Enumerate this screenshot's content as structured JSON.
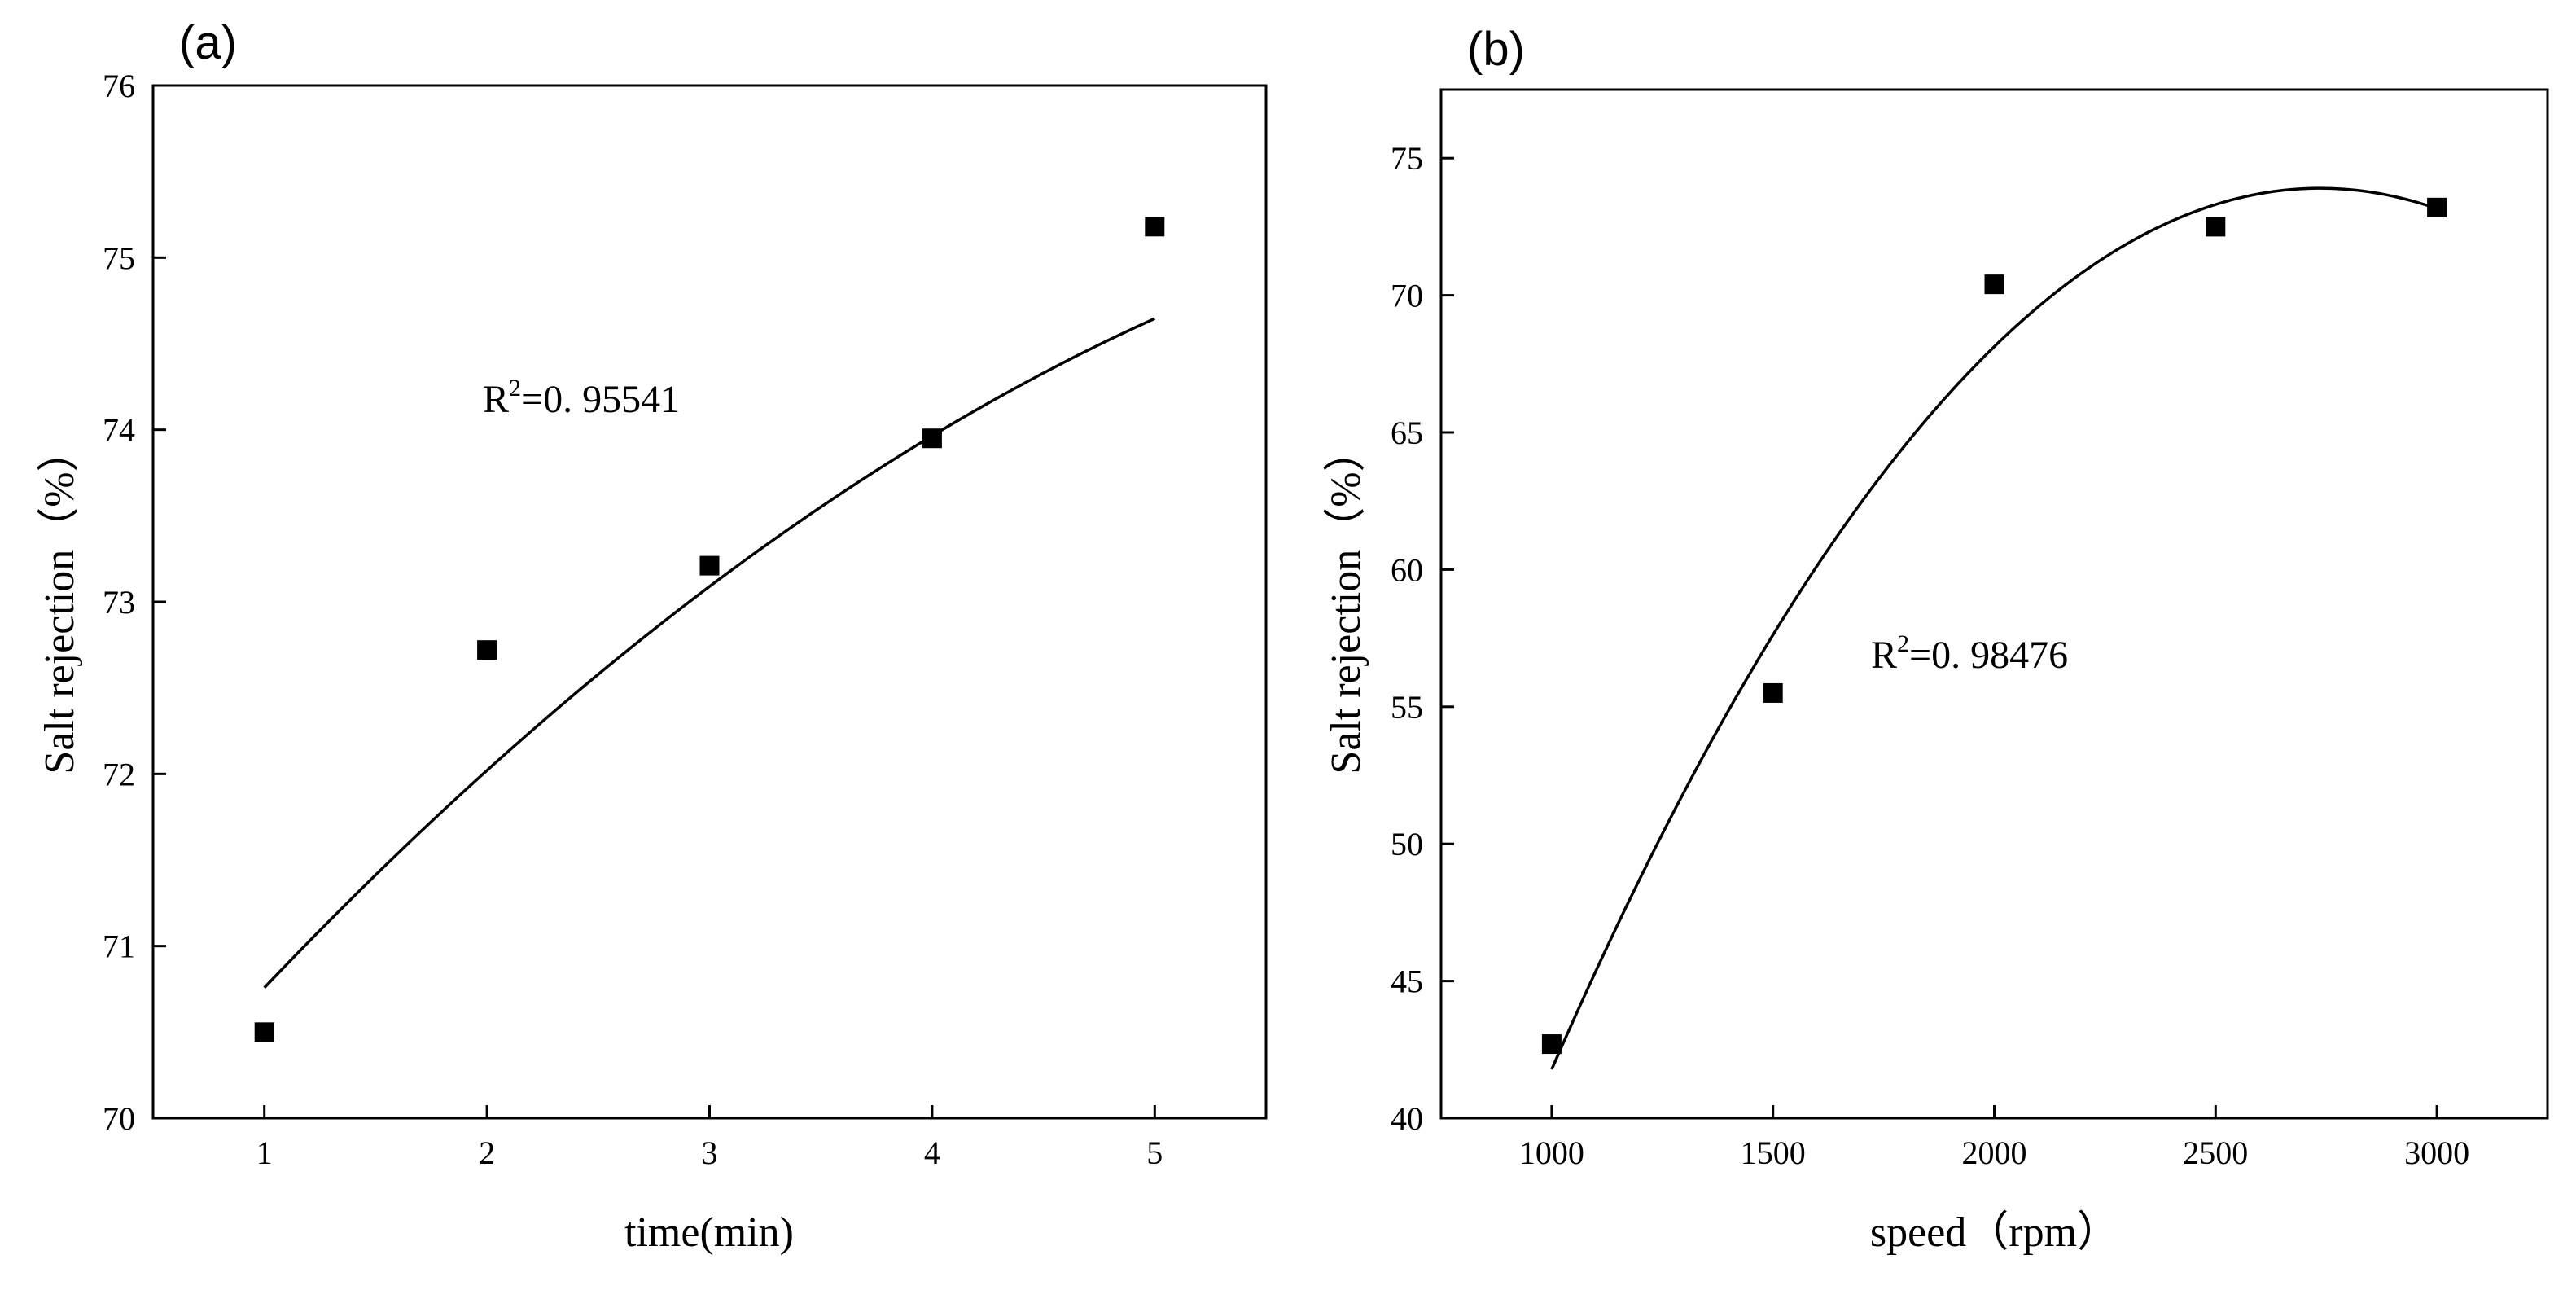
{
  "chart_data": [
    {
      "panel": "(a)",
      "type": "scatter",
      "xlabel": "time(min)",
      "ylabel": "Salt rejection（%）",
      "xlim": [
        0.5,
        5.5
      ],
      "ylim": [
        70,
        76
      ],
      "xticks": [
        1,
        2,
        3,
        4,
        5
      ],
      "yticks": [
        70,
        71,
        72,
        73,
        74,
        75,
        76
      ],
      "x": [
        1,
        2,
        3,
        4,
        5
      ],
      "y": [
        70.5,
        72.72,
        73.21,
        73.95,
        75.18
      ],
      "fit": {
        "type": "quadratic",
        "coeffs": [
          -0.0968,
          1.5528,
          69.302
        ],
        "x_range": [
          1,
          5
        ]
      },
      "annotation": {
        "base": "R",
        "sup": "2",
        "rest": "=0. 95541"
      }
    },
    {
      "panel": "(b)",
      "type": "scatter",
      "xlabel": "speed（rpm）",
      "ylabel": "Salt rejection（%）",
      "xlim": [
        750,
        3250
      ],
      "ylim": [
        40,
        77.5
      ],
      "xticks": [
        1000,
        1500,
        2000,
        2500,
        3000
      ],
      "yticks": [
        40,
        45,
        50,
        55,
        60,
        65,
        70,
        75
      ],
      "x": [
        1000,
        1500,
        2000,
        2500,
        3000
      ],
      "y": [
        42.7,
        55.5,
        70.4,
        72.5,
        73.2
      ],
      "fit": {
        "type": "quadratic",
        "coeffs": [
          -1.066e-05,
          0.05833,
          -5.89
        ],
        "x_range": [
          1000,
          3000
        ]
      },
      "annotation": {
        "base": "R",
        "sup": "2",
        "rest": "=0. 98476"
      }
    }
  ]
}
